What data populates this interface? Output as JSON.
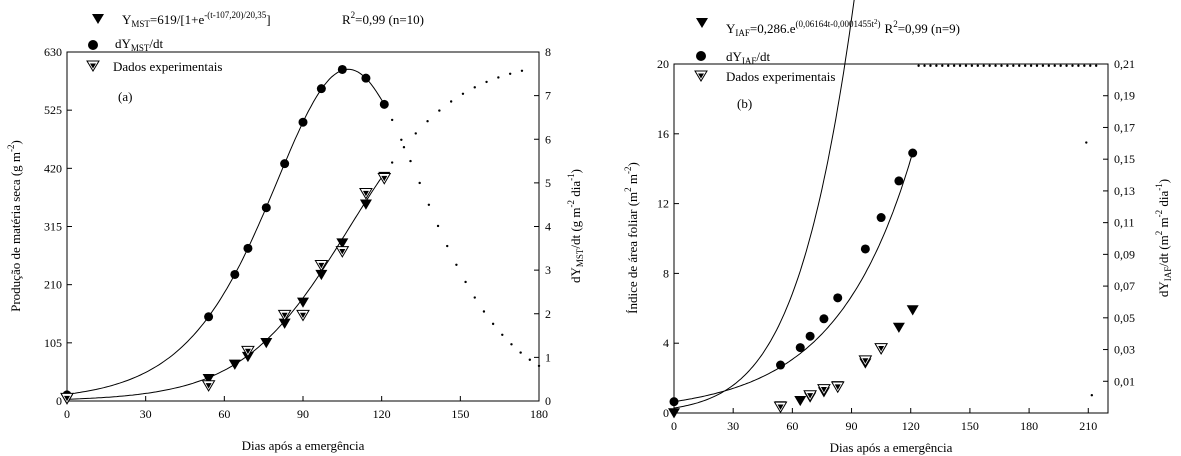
{
  "chart_data": [
    {
      "type": "scatter",
      "panel_label": "(a)",
      "legend": {
        "model": "Y",
        "model_sub": "MST",
        "model_eq": "=619/[1+e",
        "model_exp": "-(t-107,20)/20,35",
        "model_end": "]",
        "r2": "R",
        "r2_sup": "2",
        "r2_val": "=0,99 (n=10)",
        "deriv": "dY",
        "deriv_sub": "MST",
        "deriv_end": "/dt",
        "exp": "Dados experimentais"
      },
      "xlabel": "Dias após a emergência",
      "ylabel": "Produção de matéria seca (g m",
      "ylabel_sup": "-2",
      "ylabel_end": ")",
      "y2label_a": "dY",
      "y2label_sub": "MST",
      "y2label_b": "/dt (g m",
      "y2label_sup1": "-2",
      "y2label_c": " dia",
      "y2label_sup2": "-1",
      "y2label_d": ")",
      "xlim": [
        0,
        180
      ],
      "ylim": [
        0,
        630
      ],
      "y2lim": [
        0,
        8
      ],
      "xticks": [
        "0",
        "30",
        "60",
        "90",
        "120",
        "150",
        "180"
      ],
      "yticks": [
        "0",
        "105",
        "210",
        "315",
        "420",
        "525",
        "630"
      ],
      "y2ticks": [
        "0",
        "1",
        "2",
        "3",
        "4",
        "5",
        "6",
        "7",
        "8"
      ],
      "model": {
        "a": 619,
        "t0": 107.2,
        "b": 20.35
      },
      "deriv_points": {
        "x": [
          0,
          54,
          64,
          69,
          76,
          83,
          90,
          97,
          105,
          114,
          121
        ],
        "y": [
          0.14,
          1.93,
          2.9,
          3.5,
          4.43,
          5.44,
          6.39,
          7.16,
          7.6,
          7.4,
          6.8
        ]
      },
      "model_points": {
        "x": [
          0,
          54,
          64,
          69,
          76,
          83,
          90,
          97,
          105,
          114,
          121
        ],
        "y": [
          3,
          40,
          66,
          80,
          105,
          140,
          178,
          228,
          285,
          355,
          405
        ]
      },
      "exp_points": {
        "x": [
          0,
          54,
          69,
          83,
          90,
          97,
          105,
          114,
          121
        ],
        "y": [
          5,
          28,
          90,
          155,
          155,
          245,
          270,
          375,
          402
        ]
      }
    },
    {
      "type": "scatter",
      "panel_label": "(b)",
      "legend": {
        "model": "Y",
        "model_sub": "IAF",
        "model_eq": "=0,286.e",
        "model_exp": "(0,06164t-0,0001455t",
        "model_exp_sup": "2",
        "model_exp_end": ")",
        "r2": "R",
        "r2_sup": "2",
        "r2_val": "=0,99 (n=9)",
        "deriv": "dY",
        "deriv_sub": "IAF",
        "deriv_end": "/dt",
        "exp": "Dados experimentais"
      },
      "xlabel": "Dias após a emergência",
      "ylabel_a": "Índice de área foliar (m",
      "ylabel_sup1": "2",
      "ylabel_b": " m",
      "ylabel_sup2": "-2",
      "ylabel_c": ")",
      "y2label_a": "dY",
      "y2label_sub": "IAF",
      "y2label_b": "/dt (m",
      "y2label_sup1": "2",
      "y2label_c": " m",
      "y2label_sup2": "-2",
      "y2label_d": " dia",
      "y2label_sup3": "-1",
      "y2label_e": ")",
      "xlim": [
        0,
        220
      ],
      "ylim": [
        0,
        20
      ],
      "y2lim": [
        -0.01,
        0.21
      ],
      "xticks": [
        "0",
        "30",
        "60",
        "90",
        "120",
        "150",
        "180",
        "210"
      ],
      "yticks": [
        "0",
        "4",
        "8",
        "12",
        "16",
        "20"
      ],
      "y2ticks": [
        "0,01",
        "0,03",
        "0,05",
        "0,07",
        "0,09",
        "0,11",
        "0,13",
        "0,15",
        "0,17",
        "0,19",
        "0,21"
      ],
      "model": {
        "a": 0.286,
        "b": 0.06164,
        "c": 0.0001455
      },
      "deriv_points": {
        "x": [
          0,
          54,
          64,
          69,
          76,
          83,
          97,
          105,
          114,
          121
        ],
        "y": [
          0.65,
          2.75,
          3.75,
          4.4,
          5.4,
          6.6,
          9.4,
          11.2,
          13.3,
          14.9
        ]
      },
      "model_points": {
        "x": [
          0,
          54,
          64,
          69,
          76,
          83,
          97,
          105,
          114,
          121
        ],
        "y": [
          0.0,
          0.4,
          0.7,
          0.9,
          1.2,
          1.55,
          2.85,
          3.65,
          4.9,
          5.9
        ]
      },
      "exp_points": {
        "x": [
          54,
          69,
          76,
          83,
          97,
          105
        ],
        "y": [
          0.35,
          1.0,
          1.35,
          1.5,
          3.0,
          3.7
        ]
      }
    }
  ]
}
